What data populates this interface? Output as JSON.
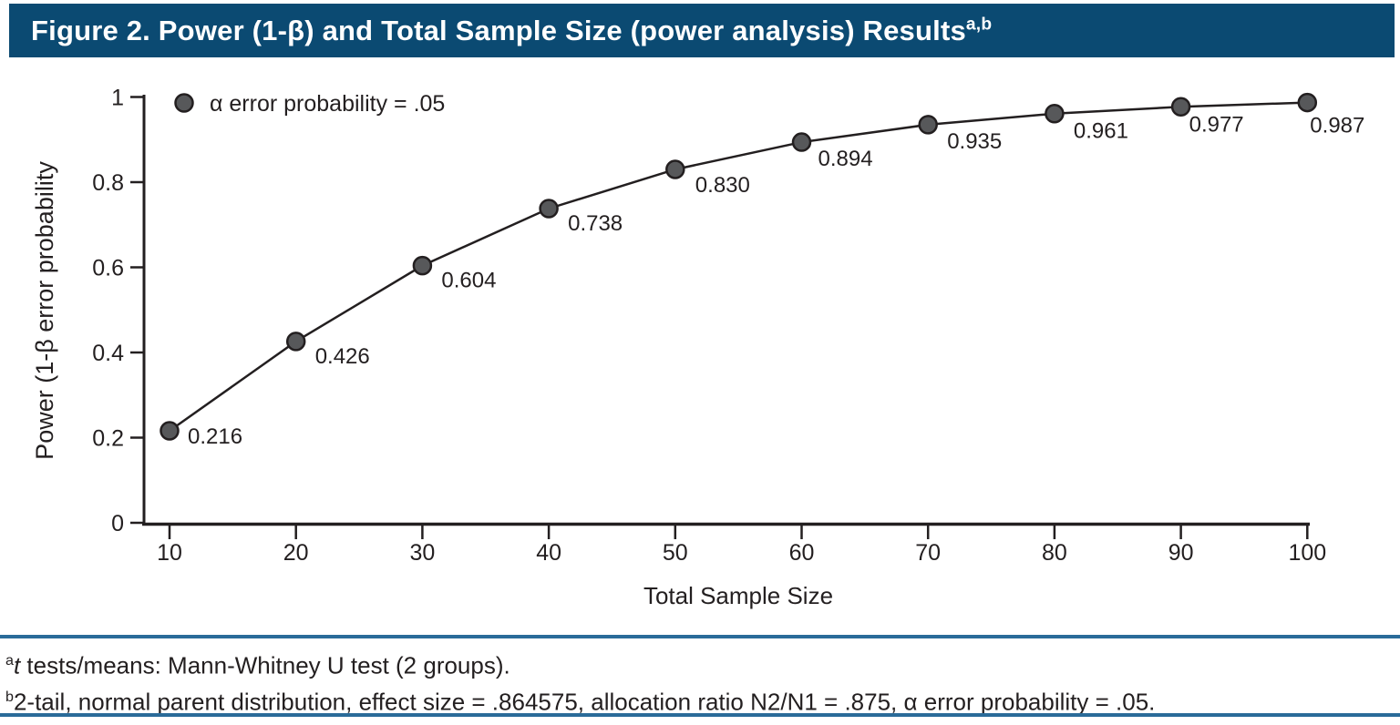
{
  "header": {
    "title": "Figure 2. Power (1-β) and Total Sample Size (power analysis) Results",
    "superscript": "a,b"
  },
  "chart_data": {
    "type": "line",
    "title": "Figure 2. Power (1-β) and Total Sample Size (power analysis) Results",
    "series_name": "α error probability = .05",
    "x": [
      10,
      20,
      30,
      40,
      50,
      60,
      70,
      80,
      90,
      100
    ],
    "values": [
      0.216,
      0.426,
      0.604,
      0.738,
      0.83,
      0.894,
      0.935,
      0.961,
      0.977,
      0.987
    ],
    "point_labels": [
      "0.216",
      "0.426",
      "0.604",
      "0.738",
      "0.830",
      "0.894",
      "0.935",
      "0.961",
      "0.977",
      "0.987"
    ],
    "xlabel": "Total Sample Size",
    "ylabel": "Power (1-β error probability",
    "xlim": [
      10,
      100
    ],
    "ylim": [
      0,
      1
    ],
    "x_ticks": [
      10,
      20,
      30,
      40,
      50,
      60,
      70,
      80,
      90,
      100
    ],
    "y_ticks": [
      0,
      0.2,
      0.4,
      0.6,
      0.8,
      1
    ],
    "y_tick_labels": [
      "0",
      "0.2",
      "0.4",
      "0.6",
      "0.8",
      "1"
    ],
    "grid": false,
    "legend_position": "top-left"
  },
  "footnotes": {
    "a": {
      "sup": "a",
      "italic": "t",
      "text": " tests/means: Mann-Whitney U test (2 groups)."
    },
    "b": {
      "sup": "b",
      "italic": "",
      "text": "2-tail, normal parent distribution, effect size = .864575, allocation ratio N2/N1 = .875, α error probability = .05."
    }
  },
  "colors": {
    "header_bg": "#0b4a72",
    "header_text": "#ffffff",
    "rule_blue": "#2a6b99",
    "axis": "#231f20",
    "text": "#231f20",
    "marker_fill": "#57585a"
  }
}
